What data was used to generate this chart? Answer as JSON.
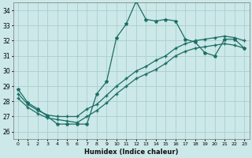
{
  "xlabel": "Humidex (Indice chaleur)",
  "xlim": [
    -0.5,
    23.5
  ],
  "ylim": [
    25.5,
    34.5
  ],
  "xticks": [
    0,
    1,
    2,
    3,
    4,
    5,
    6,
    7,
    8,
    9,
    10,
    11,
    12,
    13,
    14,
    15,
    16,
    17,
    18,
    19,
    20,
    21,
    22,
    23
  ],
  "yticks": [
    26,
    27,
    28,
    29,
    30,
    31,
    32,
    33,
    34
  ],
  "bg_color": "#cce8e8",
  "line_color": "#1a6e65",
  "grid_color": "#aacece",
  "line1_x": [
    0,
    1,
    2,
    3,
    4,
    5,
    6,
    7,
    8,
    9,
    10,
    11,
    12,
    13,
    14,
    15,
    16,
    17,
    18,
    19,
    20,
    21,
    22,
    23
  ],
  "line1_y": [
    28.8,
    27.9,
    27.5,
    27.0,
    26.5,
    26.5,
    26.5,
    26.5,
    28.5,
    29.3,
    32.2,
    33.1,
    34.6,
    33.4,
    33.3,
    33.4,
    33.3,
    32.1,
    31.9,
    31.2,
    31.0,
    32.1,
    32.1,
    31.5
  ],
  "line2_x": [
    0,
    1,
    2,
    3,
    4,
    5,
    6,
    7,
    8,
    9,
    10,
    11,
    12,
    13,
    14,
    15,
    16,
    17,
    18,
    19,
    20,
    21,
    22,
    23
  ],
  "line2_y": [
    28.5,
    27.8,
    27.4,
    27.1,
    27.0,
    27.0,
    27.0,
    27.5,
    27.8,
    28.4,
    29.0,
    29.5,
    30.0,
    30.3,
    30.7,
    31.0,
    31.5,
    31.8,
    32.0,
    32.1,
    32.2,
    32.3,
    32.2,
    32.0
  ],
  "line3_x": [
    0,
    1,
    2,
    3,
    4,
    5,
    6,
    7,
    8,
    9,
    10,
    11,
    12,
    13,
    14,
    15,
    16,
    17,
    18,
    19,
    20,
    21,
    22,
    23
  ],
  "line3_y": [
    28.2,
    27.6,
    27.2,
    26.9,
    26.8,
    26.7,
    26.6,
    27.0,
    27.4,
    27.9,
    28.5,
    29.0,
    29.5,
    29.8,
    30.1,
    30.5,
    31.0,
    31.3,
    31.5,
    31.6,
    31.7,
    31.8,
    31.7,
    31.5
  ]
}
